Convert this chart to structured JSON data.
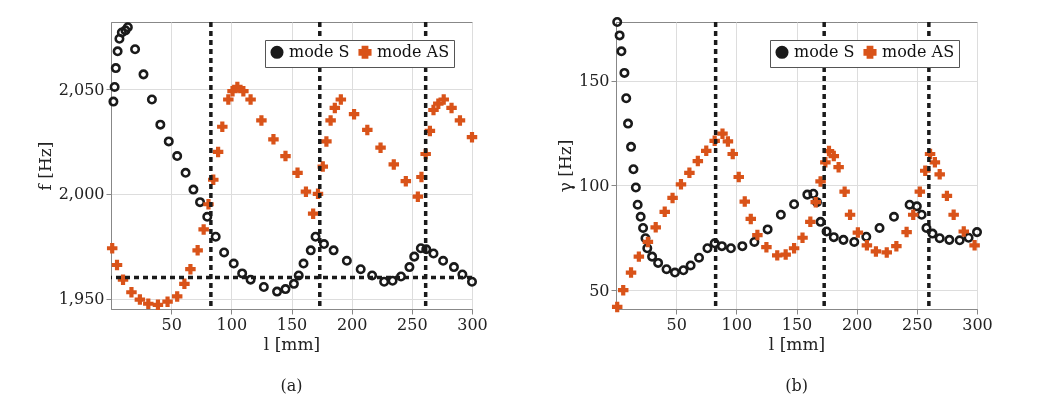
{
  "chart_data": [
    {
      "type": "scatter",
      "xlabel": "l [mm]",
      "ylabel": "f [Hz]",
      "annotations": [
        "(a)"
      ],
      "xlim": [
        0,
        300
      ],
      "xticks": [
        50,
        100,
        150,
        200,
        250,
        300
      ],
      "ylim": [
        1945,
        2082
      ],
      "yticks": [
        {
          "value": 1950,
          "label": "1,950"
        },
        {
          "value": 2000,
          "label": "2,000"
        },
        {
          "value": 2050,
          "label": "2,050"
        }
      ],
      "grid": true,
      "legend": "top right",
      "series": [
        {
          "name": "mode S",
          "color": "#1a1a1a",
          "marker": "circle",
          "x": [
            2,
            3,
            4,
            5.5,
            7,
            9,
            12,
            14,
            20,
            27,
            34,
            41,
            48,
            55,
            62,
            68.5,
            74,
            80,
            87,
            94,
            102,
            109,
            116,
            127,
            138,
            145,
            152,
            156,
            160,
            166,
            170,
            177,
            185,
            196,
            207.5,
            217,
            227,
            234,
            241,
            248,
            252,
            257.5,
            262,
            268,
            276,
            285,
            292,
            300
          ],
          "values": [
            2044,
            2051,
            2060,
            2068,
            2074,
            2077,
            2078,
            2079.5,
            2069,
            2057,
            2045,
            2033,
            2025,
            2018,
            2010,
            2002,
            1996,
            1989,
            1979.5,
            1972,
            1966.7,
            1962,
            1959,
            1955.5,
            1953.3,
            1954.5,
            1957,
            1961,
            1966.7,
            1973,
            1979.5,
            1976,
            1973,
            1968,
            1964,
            1961,
            1958,
            1958.5,
            1960.5,
            1965,
            1970,
            1974,
            1973.5,
            1971.5,
            1968,
            1965,
            1961.5,
            1958
          ]
        },
        {
          "name": "mode AS",
          "color": "#d95319",
          "marker": "cross",
          "x": [
            1,
            5,
            10,
            17,
            24,
            31,
            39,
            47,
            55,
            61,
            66,
            72,
            77,
            81,
            85,
            89,
            92.5,
            97.5,
            101,
            105,
            110,
            116,
            125,
            135,
            145,
            155,
            162,
            168,
            172,
            176,
            179,
            182.5,
            186,
            191,
            202,
            213,
            224,
            235,
            245,
            255,
            258,
            261.5,
            265,
            268,
            272,
            276.5,
            283,
            290,
            300
          ],
          "values": [
            1974,
            1966,
            1959,
            1953,
            1949.5,
            1947.5,
            1947,
            1948.5,
            1951,
            1957,
            1964,
            1973,
            1983,
            1995,
            2006.7,
            2020,
            2032,
            2045,
            2049,
            2051,
            2049,
            2045,
            2035,
            2026,
            2018,
            2010,
            2001,
            1990.5,
            2000,
            2013,
            2025,
            2035,
            2041,
            2045,
            2038,
            2030.5,
            2022,
            2014,
            2006,
            1998.6,
            2008,
            2019,
            2030,
            2040,
            2043,
            2045,
            2041,
            2035,
            2027
          ]
        }
      ],
      "ref_lines": [
        {
          "axis": "x",
          "value": 83,
          "color": "#1a1a1a",
          "line_style": "dashed"
        },
        {
          "axis": "x",
          "value": 173.5,
          "color": "#1a1a1a",
          "line_style": "dashed"
        },
        {
          "axis": "x",
          "value": 261.5,
          "color": "#1a1a1a",
          "line_style": "dashed"
        },
        {
          "axis": "y",
          "value": 1960,
          "color": "#1a1a1a",
          "line_style": "dashed"
        }
      ]
    },
    {
      "type": "scatter",
      "xlabel": "l [mm]",
      "ylabel": "γ [Hz]",
      "annotations": [
        "(b)"
      ],
      "xlim": [
        0,
        300
      ],
      "xticks": [
        50,
        100,
        150,
        200,
        250,
        300
      ],
      "ylim": [
        41,
        178
      ],
      "yticks": [
        50,
        100,
        150
      ],
      "grid": true,
      "legend": "top right",
      "series": [
        {
          "name": "mode S",
          "color": "#1a1a1a",
          "marker": "circle",
          "x": [
            1,
            3,
            4.5,
            7,
            8.5,
            10,
            12.5,
            14.5,
            16.5,
            18,
            20.5,
            22.5,
            24.5,
            26,
            30,
            35,
            42,
            49,
            56,
            62,
            69,
            76,
            82,
            88,
            95.5,
            105,
            115,
            126,
            137,
            148,
            159,
            164,
            167,
            170,
            175,
            181,
            189,
            198,
            208,
            219,
            231,
            244,
            250,
            254,
            258,
            263,
            269,
            277,
            285.6,
            293,
            300
          ],
          "values": [
            178,
            171.6,
            164,
            153.7,
            141.6,
            129.5,
            118.4,
            107.7,
            99,
            90.8,
            85,
            79.7,
            74.8,
            70,
            66,
            63,
            60,
            58.4,
            59.5,
            61.8,
            65.5,
            70,
            72.4,
            71,
            70,
            71,
            73,
            79,
            86,
            91,
            95.6,
            96,
            92,
            82.6,
            78,
            75.3,
            74,
            73,
            75.5,
            79.7,
            85,
            90.8,
            90,
            86,
            79.7,
            77,
            74.8,
            74,
            73.8,
            75,
            77.7
          ]
        },
        {
          "name": "mode AS",
          "color": "#d95319",
          "marker": "cross",
          "x": [
            1,
            6,
            12.5,
            19,
            26.5,
            33,
            40.5,
            47,
            54,
            61,
            68,
            75,
            82,
            88.5,
            93,
            97,
            102,
            107,
            112,
            117.5,
            125,
            134,
            141,
            148,
            155,
            161.5,
            166,
            170,
            174,
            177,
            181,
            185,
            190,
            194.5,
            201,
            208.5,
            216,
            225,
            233,
            241.5,
            247,
            252.5,
            257,
            261,
            265,
            269,
            275,
            280.6,
            289,
            298
          ],
          "values": [
            42,
            50,
            58.4,
            66,
            73,
            80,
            87.4,
            94,
            100.5,
            106,
            111.6,
            116.5,
            121.3,
            124.7,
            121,
            115,
            104,
            92.3,
            84,
            76.3,
            70.5,
            66.6,
            67,
            70,
            75,
            82.6,
            92,
            101.9,
            111,
            116.4,
            114,
            108.7,
            97,
            86,
            77.5,
            71.4,
            68.5,
            68,
            71,
            77.7,
            86,
            97,
            107,
            115,
            111,
            105.3,
            95,
            86,
            78,
            71.4
          ]
        }
      ],
      "ref_lines": [
        {
          "axis": "x",
          "value": 82.8,
          "color": "#1a1a1a",
          "line_style": "dashed"
        },
        {
          "axis": "x",
          "value": 173,
          "color": "#1a1a1a",
          "line_style": "dashed"
        },
        {
          "axis": "x",
          "value": 260,
          "color": "#1a1a1a",
          "line_style": "dashed"
        }
      ]
    }
  ]
}
